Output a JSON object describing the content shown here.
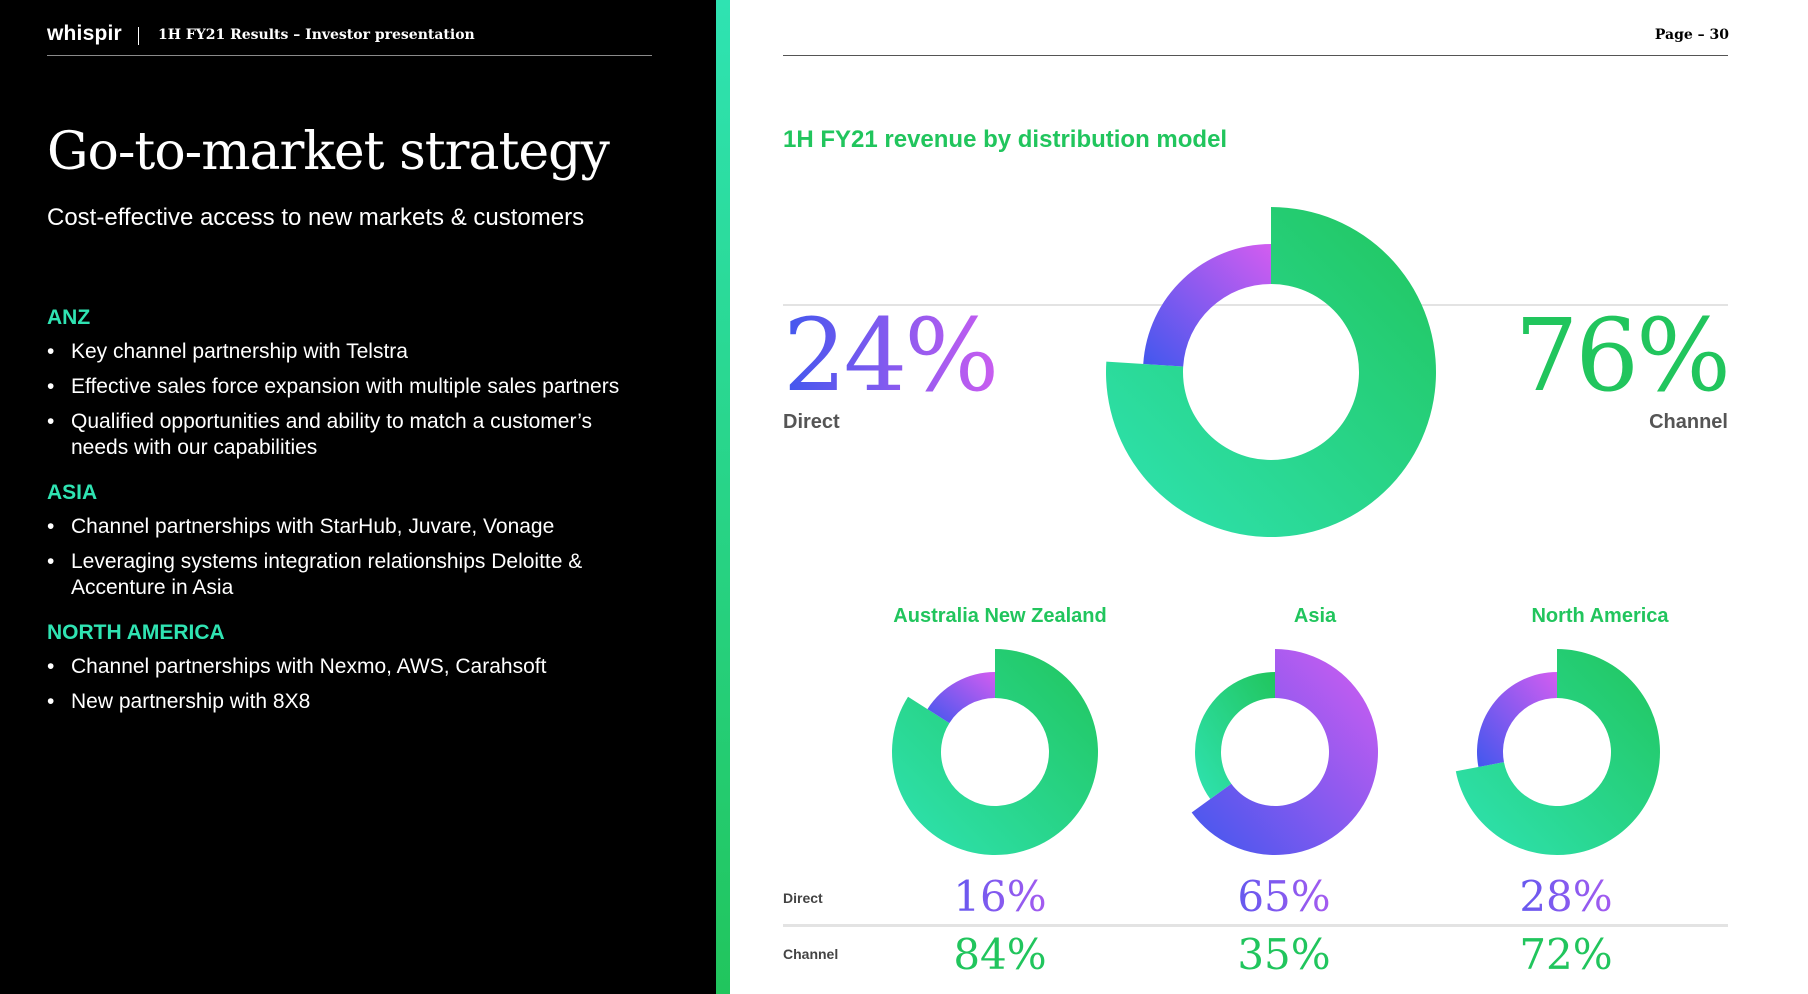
{
  "header": {
    "brand": "whispir",
    "doc_title": "1H FY21 Results – Investor presentation",
    "page": "Page – 30"
  },
  "left": {
    "title": "Go-to-market strategy",
    "subtitle": "Cost-effective access to new markets & customers",
    "sections": [
      {
        "heading": "ANZ",
        "bullets": [
          "Key channel partnership with Telstra",
          "Effective sales force expansion with multiple sales partners",
          "Qualified opportunities and ability to match a customer’s needs with our capabilities"
        ]
      },
      {
        "heading": "ASIA",
        "bullets": [
          "Channel partnerships with StarHub, Juvare, Vonage",
          "Leveraging systems integration relationships Deloitte & Accenture in Asia"
        ]
      },
      {
        "heading": "NORTH AMERICA",
        "bullets": [
          "Channel partnerships with Nexmo, AWS, Carahsoft",
          "New partnership with 8X8"
        ]
      }
    ]
  },
  "chart_data": {
    "type": "pie",
    "title": "1H FY21 revenue by distribution model",
    "overall": {
      "direct_label": "Direct",
      "direct_pct": "24%",
      "direct": 24,
      "channel_label": "Channel",
      "channel_pct": "76%",
      "channel": 76
    },
    "row_labels": {
      "direct": "Direct",
      "channel": "Channel"
    },
    "regions": [
      {
        "name": "Australia New Zealand",
        "direct": 16,
        "channel": 84,
        "direct_pct": "16%",
        "channel_pct": "84%"
      },
      {
        "name": "Asia",
        "direct": 65,
        "channel": 35,
        "direct_pct": "65%",
        "channel_pct": "35%"
      },
      {
        "name": "North America",
        "direct": 28,
        "channel": 72,
        "direct_pct": "28%",
        "channel_pct": "72%"
      }
    ],
    "colors": {
      "direct_start": "#4157ee",
      "direct_end": "#d35df0",
      "channel_start": "#21c55d",
      "channel_end": "#2fe3b2"
    }
  }
}
